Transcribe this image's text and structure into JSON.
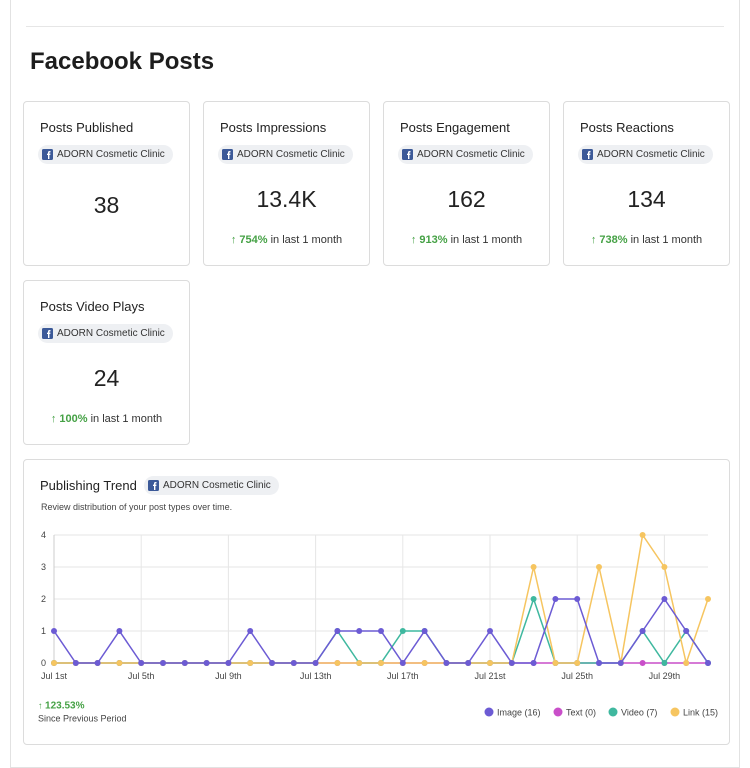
{
  "page_title": "Facebook Posts",
  "cards": [
    {
      "title": "Posts Published",
      "account": "ADORN Cosmetic Clinic",
      "value": "38"
    },
    {
      "title": "Posts Impressions",
      "account": "ADORN Cosmetic Clinic",
      "value": "13.4K",
      "change": "754%",
      "change_suffix": "in last 1 month"
    },
    {
      "title": "Posts Engagement",
      "account": "ADORN Cosmetic Clinic",
      "value": "162",
      "change": "913%",
      "change_suffix": "in last 1 month"
    },
    {
      "title": "Posts Reactions",
      "account": "ADORN Cosmetic Clinic",
      "value": "134",
      "change": "738%",
      "change_suffix": "in last 1 month"
    },
    {
      "title": "Posts Video Plays",
      "account": "ADORN Cosmetic Clinic",
      "value": "24",
      "change": "100%",
      "change_suffix": "in last 1 month"
    }
  ],
  "chart_data": {
    "type": "line",
    "title": "Publishing Trend",
    "account": "ADORN Cosmetic Clinic",
    "subtitle": "Review distribution of your post types over time.",
    "categories": [
      "Jul 1st",
      null,
      null,
      null,
      "Jul 5th",
      null,
      null,
      null,
      "Jul 9th",
      null,
      null,
      null,
      "Jul 13th",
      null,
      null,
      null,
      "Jul 17th",
      null,
      null,
      null,
      "Jul 21st",
      null,
      null,
      null,
      "Jul 25th",
      null,
      null,
      null,
      "Jul 29th",
      null,
      null
    ],
    "ylim": [
      0,
      4
    ],
    "yticks": [
      0,
      1,
      2,
      3,
      4
    ],
    "grid": true,
    "series": [
      {
        "name": "Image (16)",
        "color": "#6c5bd4",
        "values": [
          1,
          0,
          0,
          1,
          0,
          0,
          0,
          0,
          0,
          1,
          0,
          0,
          0,
          1,
          1,
          1,
          0,
          1,
          0,
          0,
          1,
          0,
          0,
          2,
          2,
          0,
          0,
          1,
          2,
          1,
          0
        ]
      },
      {
        "name": "Text (0)",
        "color": "#c94fc9",
        "values": [
          0,
          0,
          0,
          0,
          0,
          0,
          0,
          0,
          0,
          0,
          0,
          0,
          0,
          0,
          0,
          0,
          0,
          0,
          0,
          0,
          0,
          0,
          0,
          0,
          0,
          0,
          0,
          0,
          0,
          0,
          0
        ]
      },
      {
        "name": "Video (7)",
        "color": "#3fb89f",
        "values": [
          0,
          0,
          0,
          0,
          0,
          0,
          0,
          0,
          0,
          0,
          0,
          0,
          0,
          1,
          0,
          0,
          1,
          1,
          0,
          0,
          0,
          0,
          2,
          0,
          0,
          0,
          0,
          1,
          0,
          1,
          0
        ]
      },
      {
        "name": "Link (15)",
        "color": "#f6c560",
        "values": [
          0,
          0,
          0,
          0,
          0,
          0,
          0,
          0,
          0,
          0,
          0,
          0,
          0,
          0,
          0,
          0,
          0,
          0,
          0,
          0,
          0,
          0,
          3,
          0,
          0,
          3,
          0,
          4,
          3,
          0,
          2
        ]
      }
    ],
    "change": "123.53%",
    "change_label": "Since Previous Period"
  }
}
